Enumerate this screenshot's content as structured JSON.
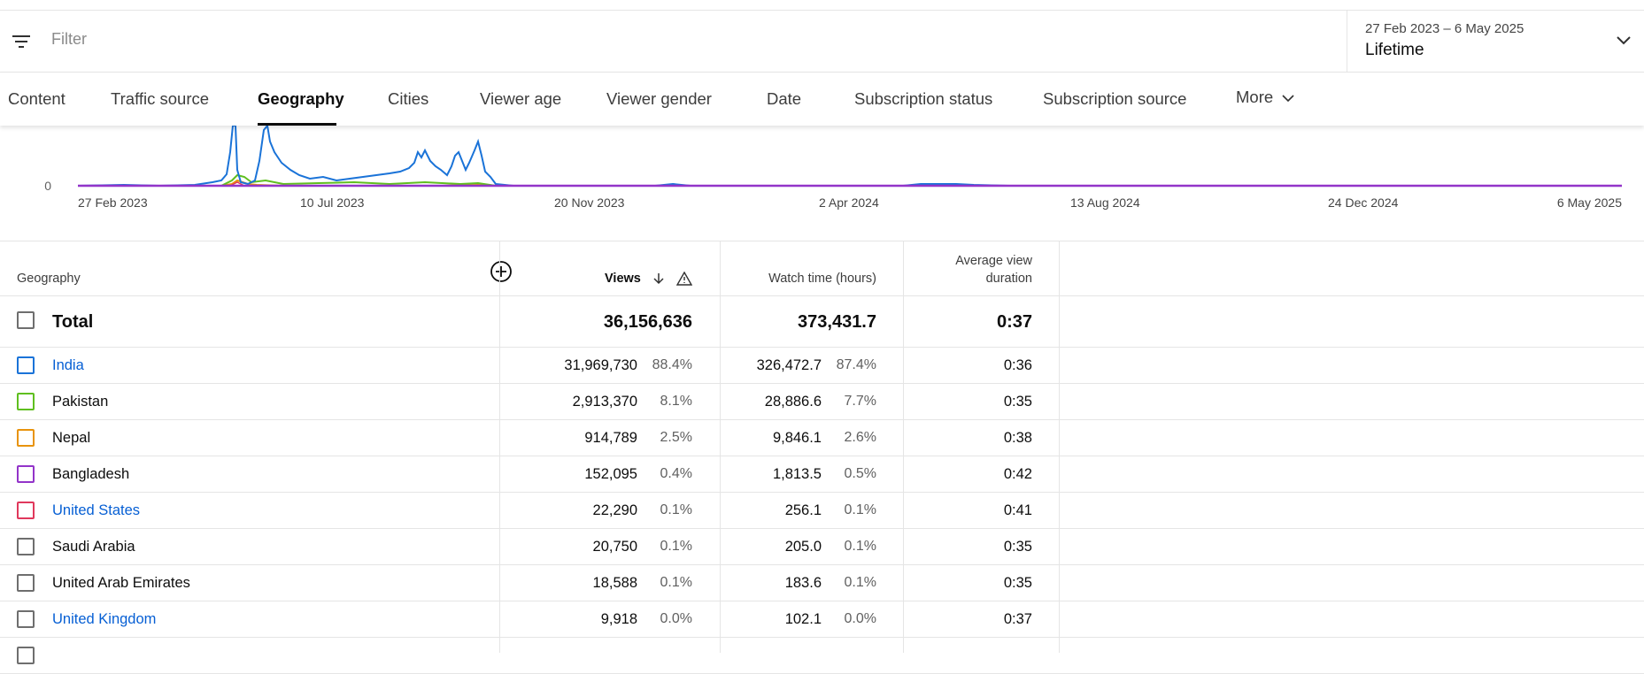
{
  "filter": {
    "placeholder": "Filter"
  },
  "date_range": {
    "range": "27 Feb 2023 – 6 May 2025",
    "period": "Lifetime"
  },
  "tabs": [
    {
      "label": "Content"
    },
    {
      "label": "Traffic source"
    },
    {
      "label": "Geography"
    },
    {
      "label": "Cities"
    },
    {
      "label": "Viewer age"
    },
    {
      "label": "Viewer gender"
    },
    {
      "label": "Date"
    },
    {
      "label": "Subscription status"
    },
    {
      "label": "Subscription source"
    },
    {
      "label": "More"
    }
  ],
  "active_tab": "Geography",
  "chart": {
    "y_tick": "0",
    "x_ticks": [
      "27 Feb 2023",
      "10 Jul 2023",
      "20 Nov 2023",
      "2 Apr 2024",
      "13 Aug 2024",
      "24 Dec 2024",
      "6 May 2025"
    ]
  },
  "table": {
    "headers": {
      "geography": "Geography",
      "views": "Views",
      "watch_time": "Watch time (hours)",
      "avg_line1": "Average view",
      "avg_line2": "duration"
    },
    "total": {
      "label": "Total",
      "views": "36,156,636",
      "watch": "373,431.7",
      "avg": "0:37"
    },
    "rows": [
      {
        "name": "India",
        "views": "31,969,730",
        "views_pct": "88.4%",
        "watch": "326,472.7",
        "watch_pct": "87.4%",
        "avg": "0:36"
      },
      {
        "name": "Pakistan",
        "views": "2,913,370",
        "views_pct": "8.1%",
        "watch": "28,886.6",
        "watch_pct": "7.7%",
        "avg": "0:35"
      },
      {
        "name": "Nepal",
        "views": "914,789",
        "views_pct": "2.5%",
        "watch": "9,846.1",
        "watch_pct": "2.6%",
        "avg": "0:38"
      },
      {
        "name": "Bangladesh",
        "views": "152,095",
        "views_pct": "0.4%",
        "watch": "1,813.5",
        "watch_pct": "0.5%",
        "avg": "0:42"
      },
      {
        "name": "United States",
        "views": "22,290",
        "views_pct": "0.1%",
        "watch": "256.1",
        "watch_pct": "0.1%",
        "avg": "0:41"
      },
      {
        "name": "Saudi Arabia",
        "views": "20,750",
        "views_pct": "0.1%",
        "watch": "205.0",
        "watch_pct": "0.1%",
        "avg": "0:35"
      },
      {
        "name": "United Arab Emirates",
        "views": "18,588",
        "views_pct": "0.1%",
        "watch": "183.6",
        "watch_pct": "0.1%",
        "avg": "0:35"
      },
      {
        "name": "United Kingdom",
        "views": "9,918",
        "views_pct": "0.0%",
        "watch": "102.1",
        "watch_pct": "0.0%",
        "avg": "0:37"
      }
    ]
  },
  "colors": {
    "india": "#1a73d8",
    "pakistan": "#5fbf1f",
    "nepal": "#e8930c",
    "bangladesh": "#9334c9",
    "united_states": "#e0385c",
    "link": "#065fd4"
  }
}
